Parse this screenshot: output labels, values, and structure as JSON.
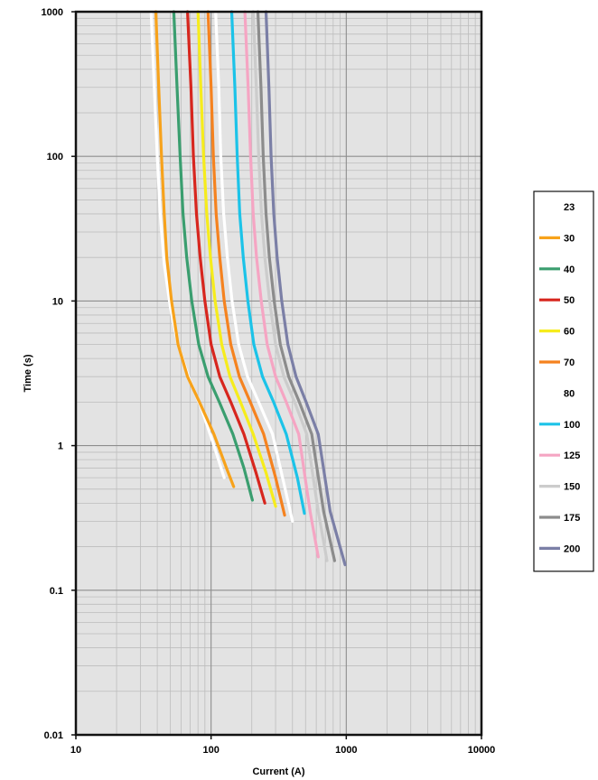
{
  "chart_data": {
    "type": "line",
    "title": "",
    "xlabel": "Current (A)",
    "ylabel": "Time (s)",
    "x_scale": "log",
    "y_scale": "log",
    "xlim": [
      10,
      10000
    ],
    "ylim": [
      0.01,
      1000
    ],
    "x_tick_labels": [
      "10",
      "100",
      "1000",
      "10000"
    ],
    "y_tick_labels": [
      "1000",
      "100",
      "10",
      "1",
      "0.1",
      "0.01"
    ],
    "x_ticks": [
      10,
      100,
      1000,
      10000
    ],
    "y_ticks": [
      1000,
      100,
      10,
      1,
      0.1,
      0.01
    ],
    "grid": true,
    "plot_background": "#e3e3e3",
    "legend_position": "right",
    "series": [
      {
        "name": "23",
        "color": "#ffffff",
        "x": [
          36,
          38,
          40,
          42,
          45,
          50,
          57,
          68,
          85,
          105,
          125
        ],
        "y": [
          1000,
          300,
          100,
          40,
          18,
          9,
          5,
          3,
          1.8,
          1.0,
          0.6
        ]
      },
      {
        "name": "30",
        "color": "#f7a21b",
        "x": [
          39,
          41,
          43,
          45,
          47,
          51,
          57,
          67,
          82,
          105,
          130,
          147
        ],
        "y": [
          1000,
          300,
          100,
          40,
          20,
          10,
          5,
          3,
          2,
          1.2,
          0.7,
          0.52
        ]
      },
      {
        "name": "40",
        "color": "#3a9e6f",
        "x": [
          53,
          56,
          59,
          62,
          66,
          72,
          81,
          95,
          115,
          145,
          175,
          202
        ],
        "y": [
          1000,
          300,
          100,
          40,
          20,
          10,
          5,
          3,
          2,
          1.2,
          0.7,
          0.42
        ]
      },
      {
        "name": "50",
        "color": "#d7261e",
        "x": [
          67,
          71,
          74,
          78,
          83,
          90,
          100,
          116,
          140,
          175,
          215,
          250
        ],
        "y": [
          1000,
          300,
          100,
          40,
          20,
          10,
          5,
          3,
          2,
          1.2,
          0.65,
          0.4
        ]
      },
      {
        "name": "60",
        "color": "#f6ec1c",
        "x": [
          80,
          84,
          88,
          93,
          99,
          107,
          120,
          138,
          165,
          205,
          255,
          300
        ],
        "y": [
          1000,
          300,
          100,
          40,
          20,
          10,
          5,
          3,
          2,
          1.2,
          0.65,
          0.38
        ]
      },
      {
        "name": "70",
        "color": "#f5821f",
        "x": [
          95,
          100,
          104,
          109,
          116,
          125,
          140,
          162,
          195,
          245,
          300,
          350
        ],
        "y": [
          1000,
          300,
          100,
          40,
          20,
          10,
          5,
          3,
          2,
          1.2,
          0.6,
          0.33
        ]
      },
      {
        "name": "80",
        "color": "#ffffff",
        "x": [
          108,
          114,
          118,
          124,
          132,
          143,
          160,
          186,
          225,
          285,
          345,
          400
        ],
        "y": [
          1000,
          300,
          100,
          40,
          20,
          10,
          5,
          3,
          2,
          1.2,
          0.55,
          0.3
        ]
      },
      {
        "name": "100",
        "color": "#1cc3e8",
        "x": [
          142,
          150,
          156,
          163,
          173,
          187,
          207,
          240,
          290,
          360,
          435,
          490
        ],
        "y": [
          1000,
          300,
          100,
          40,
          20,
          10,
          5,
          3,
          2,
          1.2,
          0.6,
          0.34
        ]
      },
      {
        "name": "125",
        "color": "#f5a5c3",
        "x": [
          178,
          188,
          196,
          205,
          217,
          235,
          260,
          300,
          360,
          445,
          540,
          620
        ],
        "y": [
          1000,
          300,
          100,
          40,
          20,
          10,
          5,
          3,
          2,
          1.2,
          0.35,
          0.17
        ]
      },
      {
        "name": "150",
        "color": "#cccccc",
        "x": [
          205,
          216,
          225,
          236,
          250,
          271,
          300,
          345,
          415,
          510,
          620,
          720
        ],
        "y": [
          1000,
          300,
          100,
          40,
          20,
          10,
          5,
          3,
          2,
          1.2,
          0.35,
          0.16
        ]
      },
      {
        "name": "175",
        "color": "#8c8c8c",
        "x": [
          222,
          234,
          243,
          255,
          270,
          293,
          325,
          375,
          450,
          555,
          680,
          820
        ],
        "y": [
          1000,
          300,
          100,
          40,
          20,
          10,
          5,
          3,
          2,
          1.2,
          0.35,
          0.16
        ]
      },
      {
        "name": "200",
        "color": "#7b7fa6",
        "x": [
          255,
          268,
          278,
          291,
          308,
          333,
          370,
          425,
          505,
          620,
          760,
          980
        ],
        "y": [
          1000,
          300,
          100,
          40,
          20,
          10,
          5,
          3,
          2,
          1.2,
          0.35,
          0.15
        ]
      }
    ]
  }
}
